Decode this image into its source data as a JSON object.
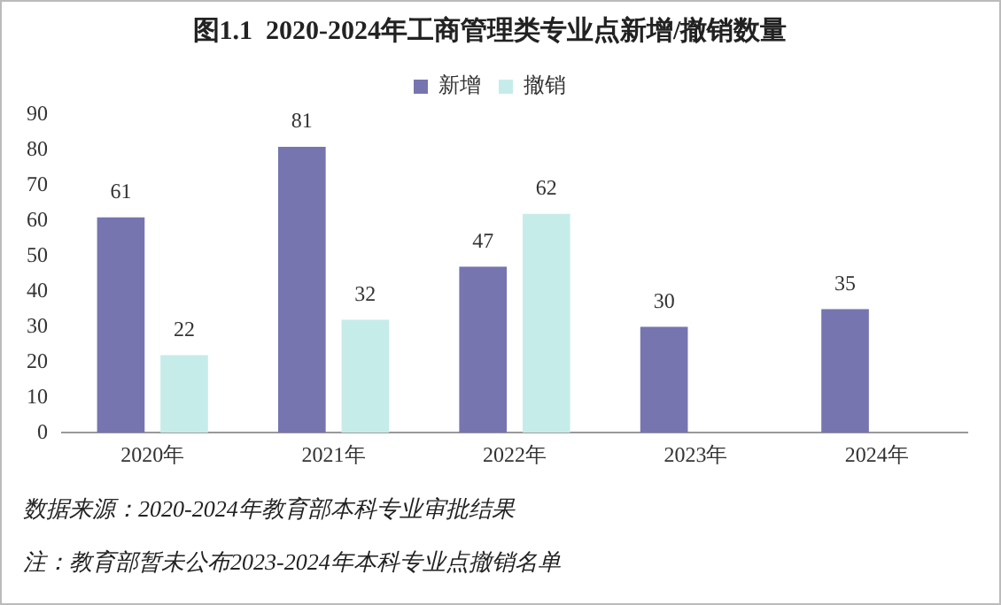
{
  "chart_data": {
    "type": "bar",
    "title": "图1.1  2020-2024年工商管理类专业点新增/撤销数量",
    "categories": [
      "2020年",
      "2021年",
      "2022年",
      "2023年",
      "2024年"
    ],
    "series": [
      {
        "name": "新增",
        "color": "#7675b0",
        "values": [
          61,
          81,
          47,
          30,
          35
        ]
      },
      {
        "name": "撤销",
        "color": "#c6ecea",
        "values": [
          22,
          32,
          62,
          null,
          null
        ]
      }
    ],
    "ylim": [
      0,
      90
    ],
    "yticks": [
      0,
      10,
      20,
      30,
      40,
      50,
      60,
      70,
      80,
      90
    ],
    "grid": false,
    "legend": "top",
    "data_labels": true,
    "annotations": [
      "数据来源：2020-2024年教育部本科专业审批结果",
      "注：教育部暂未公布2023-2024年本科专业点撤销名单"
    ]
  }
}
